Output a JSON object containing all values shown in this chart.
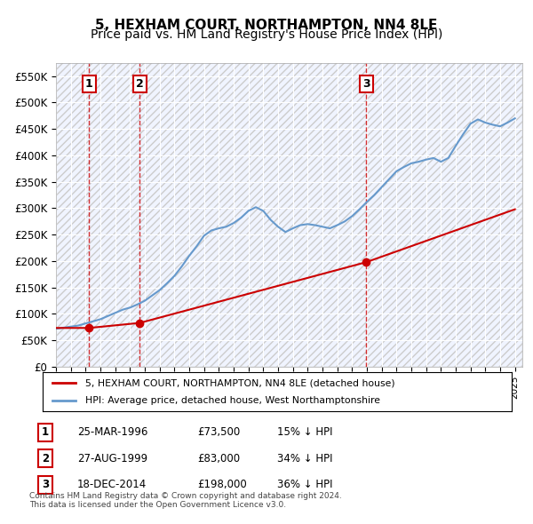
{
  "title": "5, HEXHAM COURT, NORTHAMPTON, NN4 8LE",
  "subtitle": "Price paid vs. HM Land Registry's House Price Index (HPI)",
  "ylabel": "",
  "ylim": [
    0,
    575000
  ],
  "yticks": [
    0,
    50000,
    100000,
    150000,
    200000,
    250000,
    300000,
    350000,
    400000,
    450000,
    500000,
    550000
  ],
  "ytick_labels": [
    "£0",
    "£50K",
    "£100K",
    "£150K",
    "£200K",
    "£250K",
    "£300K",
    "£350K",
    "£400K",
    "£450K",
    "£500K",
    "£550K"
  ],
  "background_color": "#ffffff",
  "plot_bg_color": "#f0f4ff",
  "grid_color": "#ffffff",
  "hpi_color": "#6699cc",
  "price_color": "#cc0000",
  "vline_color": "#cc0000",
  "sale_marker_color": "#cc0000",
  "transactions": [
    {
      "label": "1",
      "date_num": 1996.23,
      "price": 73500
    },
    {
      "label": "2",
      "date_num": 1999.66,
      "price": 83000
    },
    {
      "label": "3",
      "date_num": 2014.96,
      "price": 198000
    }
  ],
  "legend_price_label": "5, HEXHAM COURT, NORTHAMPTON, NN4 8LE (detached house)",
  "legend_hpi_label": "HPI: Average price, detached house, West Northamptonshire",
  "table_rows": [
    {
      "num": "1",
      "date": "25-MAR-1996",
      "price": "£73,500",
      "hpi": "15% ↓ HPI"
    },
    {
      "num": "2",
      "date": "27-AUG-1999",
      "price": "£83,000",
      "hpi": "34% ↓ HPI"
    },
    {
      "num": "3",
      "date": "18-DEC-2014",
      "price": "£198,000",
      "hpi": "36% ↓ HPI"
    }
  ],
  "footer": "Contains HM Land Registry data © Crown copyright and database right 2024.\nThis data is licensed under the Open Government Licence v3.0.",
  "title_fontsize": 11,
  "subtitle_fontsize": 10
}
